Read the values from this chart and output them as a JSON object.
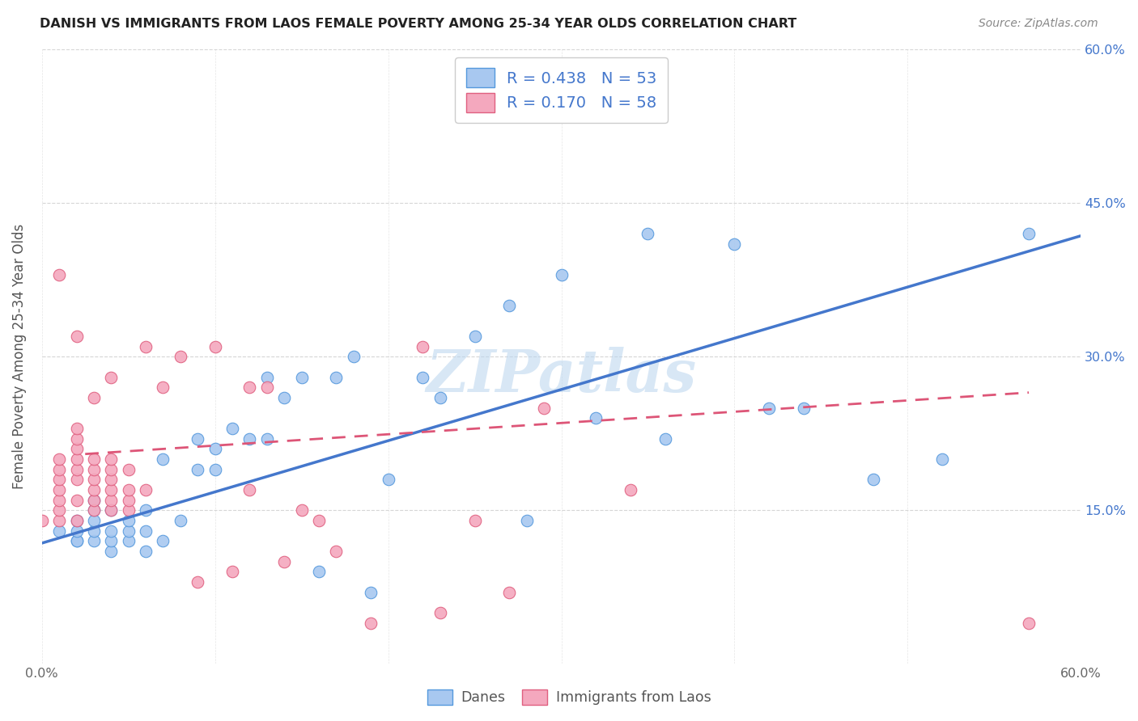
{
  "title": "DANISH VS IMMIGRANTS FROM LAOS FEMALE POVERTY AMONG 25-34 YEAR OLDS CORRELATION CHART",
  "source": "Source: ZipAtlas.com",
  "ylabel": "Female Poverty Among 25-34 Year Olds",
  "xlim": [
    0.0,
    0.6
  ],
  "ylim": [
    0.0,
    0.6
  ],
  "ytick_positions": [
    0.15,
    0.3,
    0.45,
    0.6
  ],
  "ytick_labels": [
    "15.0%",
    "30.0%",
    "45.0%",
    "60.0%"
  ],
  "danes_color": "#a8c8f0",
  "laos_color": "#f4a8be",
  "danes_edge_color": "#5599dd",
  "laos_edge_color": "#e06080",
  "danes_line_color": "#4477cc",
  "laos_line_color": "#dd5577",
  "danes_R": 0.438,
  "danes_N": 53,
  "laos_R": 0.17,
  "laos_N": 58,
  "watermark_text": "ZIPatlas",
  "legend_danes_label": "Danes",
  "legend_laos_label": "Immigrants from Laos",
  "danes_scatter_x": [
    0.01,
    0.02,
    0.02,
    0.02,
    0.02,
    0.03,
    0.03,
    0.03,
    0.03,
    0.03,
    0.04,
    0.04,
    0.04,
    0.04,
    0.05,
    0.05,
    0.05,
    0.06,
    0.06,
    0.06,
    0.07,
    0.07,
    0.08,
    0.09,
    0.09,
    0.1,
    0.1,
    0.11,
    0.12,
    0.13,
    0.13,
    0.14,
    0.15,
    0.16,
    0.17,
    0.18,
    0.19,
    0.2,
    0.22,
    0.23,
    0.25,
    0.27,
    0.28,
    0.3,
    0.32,
    0.35,
    0.36,
    0.4,
    0.42,
    0.44,
    0.48,
    0.52,
    0.57
  ],
  "danes_scatter_y": [
    0.13,
    0.12,
    0.12,
    0.13,
    0.14,
    0.12,
    0.13,
    0.14,
    0.15,
    0.16,
    0.11,
    0.12,
    0.13,
    0.15,
    0.12,
    0.13,
    0.14,
    0.11,
    0.13,
    0.15,
    0.12,
    0.2,
    0.14,
    0.22,
    0.19,
    0.19,
    0.21,
    0.23,
    0.22,
    0.22,
    0.28,
    0.26,
    0.28,
    0.09,
    0.28,
    0.3,
    0.07,
    0.18,
    0.28,
    0.26,
    0.32,
    0.35,
    0.14,
    0.38,
    0.24,
    0.42,
    0.22,
    0.41,
    0.25,
    0.25,
    0.18,
    0.2,
    0.42
  ],
  "laos_scatter_x": [
    0.0,
    0.01,
    0.01,
    0.01,
    0.01,
    0.01,
    0.01,
    0.01,
    0.01,
    0.02,
    0.02,
    0.02,
    0.02,
    0.02,
    0.02,
    0.02,
    0.02,
    0.02,
    0.03,
    0.03,
    0.03,
    0.03,
    0.03,
    0.03,
    0.03,
    0.04,
    0.04,
    0.04,
    0.04,
    0.04,
    0.04,
    0.04,
    0.05,
    0.05,
    0.05,
    0.05,
    0.06,
    0.06,
    0.07,
    0.08,
    0.09,
    0.1,
    0.11,
    0.12,
    0.12,
    0.13,
    0.14,
    0.15,
    0.16,
    0.17,
    0.19,
    0.22,
    0.23,
    0.25,
    0.27,
    0.29,
    0.34,
    0.57
  ],
  "laos_scatter_y": [
    0.14,
    0.14,
    0.15,
    0.16,
    0.17,
    0.18,
    0.19,
    0.2,
    0.38,
    0.14,
    0.16,
    0.18,
    0.19,
    0.2,
    0.21,
    0.22,
    0.23,
    0.32,
    0.15,
    0.16,
    0.17,
    0.18,
    0.19,
    0.2,
    0.26,
    0.15,
    0.16,
    0.17,
    0.18,
    0.19,
    0.2,
    0.28,
    0.15,
    0.16,
    0.17,
    0.19,
    0.17,
    0.31,
    0.27,
    0.3,
    0.08,
    0.31,
    0.09,
    0.17,
    0.27,
    0.27,
    0.1,
    0.15,
    0.14,
    0.11,
    0.04,
    0.31,
    0.05,
    0.14,
    0.07,
    0.25,
    0.17,
    0.04
  ],
  "danes_line_x": [
    0.0,
    0.6
  ],
  "danes_line_y": [
    0.118,
    0.418
  ],
  "laos_line_x": [
    0.025,
    0.57
  ],
  "laos_line_y": [
    0.205,
    0.265
  ],
  "background_color": "#ffffff",
  "grid_color": "#cccccc"
}
